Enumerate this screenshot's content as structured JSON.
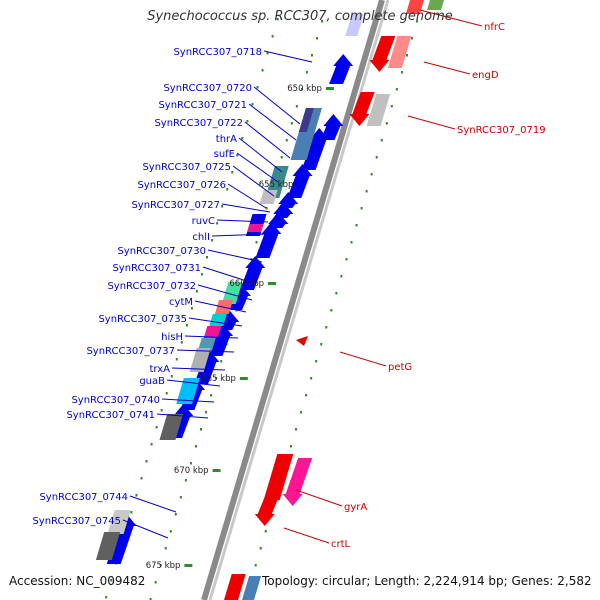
{
  "title": "Synechococcus sp. RCC307, complete genome",
  "footer": {
    "accession": "Accession: NC_009482",
    "summary": "Topology: circular; Length: 2,224,914 bp; Genes: 2,582"
  },
  "colors": {
    "backbone": "#8a8a8a",
    "forward_gene": "#0000ee",
    "reverse_gene": "#ee0000",
    "tick": "#2e8b2e",
    "label_forward": "#0000cc",
    "label_reverse": "#cc0000"
  },
  "scale_ticks": [
    {
      "label": "650 kbp"
    },
    {
      "label": "655 kbp"
    },
    {
      "label": "660 kbp"
    },
    {
      "label": "665 kbp"
    },
    {
      "label": "670 kbp"
    },
    {
      "label": "675 kbp"
    }
  ],
  "forward_labels": [
    "SynRCC307_0718",
    "SynRCC307_0720",
    "SynRCC307_0721",
    "SynRCC307_0722",
    "thrA",
    "sufE",
    "SynRCC307_0725",
    "SynRCC307_0726",
    "SynRCC307_0727",
    "ruvC",
    "chlI",
    "SynRCC307_0730",
    "SynRCC307_0731",
    "SynRCC307_0732",
    "cytM",
    "SynRCC307_0735",
    "hisH",
    "SynRCC307_0737",
    "trxA",
    "guaB",
    "SynRCC307_0740",
    "SynRCC307_0741",
    "SynRCC307_0744",
    "SynRCC307_0745"
  ],
  "reverse_labels": [
    "nfrC",
    "engD",
    "SynRCC307_0719",
    "petG",
    "gyrA",
    "crtL"
  ]
}
